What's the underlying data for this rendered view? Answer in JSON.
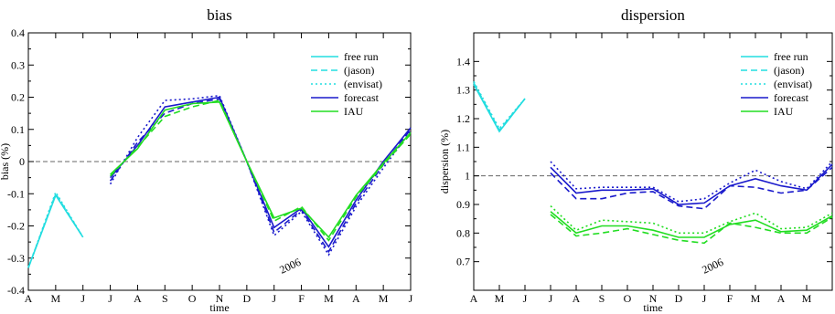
{
  "colors": {
    "cyan": "#22dde0",
    "blue": "#1a1acc",
    "green": "#22dd22",
    "ref": "#666666"
  },
  "chart_data": [
    {
      "type": "line",
      "title": "bias",
      "xlabel": "time",
      "ylabel": "bias (%)",
      "x_ticks": [
        "A",
        "M",
        "J",
        "J",
        "A",
        "S",
        "O",
        "N",
        "D",
        "J",
        "F",
        "M",
        "A",
        "M",
        "J"
      ],
      "ylim": [
        -0.4,
        0.4
      ],
      "y_ticks": [
        "0.4",
        "0.3",
        "0.2",
        "0.1",
        "0",
        "-0.1",
        "-0.2",
        "-0.3",
        "-0.4"
      ],
      "y_tick_values": [
        0.4,
        0.3,
        0.2,
        0.1,
        0,
        -0.1,
        -0.2,
        -0.3,
        -0.4
      ],
      "reference_line": 0,
      "annotation": "2006",
      "legend_position": "top-right",
      "series": [
        {
          "name": "free run",
          "color": "cyan",
          "dash": "solid",
          "points": [
            [
              0,
              -0.33
            ],
            [
              1,
              -0.105
            ],
            [
              2,
              -0.235
            ]
          ]
        },
        {
          "name": "(jason)",
          "color": "cyan",
          "dash": "dashed",
          "points": [
            [
              0,
              -0.33
            ],
            [
              1,
              -0.1
            ],
            [
              2,
              -0.235
            ]
          ]
        },
        {
          "name": "(envisat)",
          "color": "cyan",
          "dash": "dotted",
          "points": [
            [
              0,
              -0.33
            ],
            [
              1,
              -0.095
            ],
            [
              2,
              -0.235
            ]
          ]
        },
        {
          "name": "forecast",
          "color": "blue",
          "dash": "solid",
          "points": [
            [
              3,
              -0.05
            ],
            [
              4,
              0.05
            ],
            [
              5,
              0.17
            ],
            [
              6,
              0.185
            ],
            [
              7,
              0.2
            ],
            [
              8,
              0.0
            ],
            [
              9,
              -0.205
            ],
            [
              10,
              -0.145
            ],
            [
              11,
              -0.265
            ],
            [
              12,
              -0.12
            ],
            [
              13,
              0.0
            ],
            [
              14,
              0.105
            ]
          ]
        },
        {
          "name": "",
          "color": "blue",
          "dash": "dashed",
          "points": [
            [
              3,
              -0.06
            ],
            [
              4,
              0.06
            ],
            [
              5,
              0.15
            ],
            [
              6,
              0.18
            ],
            [
              7,
              0.195
            ],
            [
              8,
              0.0
            ],
            [
              9,
              -0.22
            ],
            [
              10,
              -0.15
            ],
            [
              11,
              -0.28
            ],
            [
              12,
              -0.13
            ],
            [
              13,
              -0.01
            ],
            [
              14,
              0.1
            ]
          ]
        },
        {
          "name": "",
          "color": "blue",
          "dash": "dotted",
          "points": [
            [
              3,
              -0.07
            ],
            [
              4,
              0.075
            ],
            [
              5,
              0.19
            ],
            [
              6,
              0.195
            ],
            [
              7,
              0.205
            ],
            [
              8,
              0.0
            ],
            [
              9,
              -0.23
            ],
            [
              10,
              -0.155
            ],
            [
              11,
              -0.29
            ],
            [
              12,
              -0.14
            ],
            [
              13,
              -0.02
            ],
            [
              14,
              0.095
            ]
          ]
        },
        {
          "name": "IAU",
          "color": "green",
          "dash": "solid",
          "points": [
            [
              3,
              -0.04
            ],
            [
              4,
              0.04
            ],
            [
              5,
              0.16
            ],
            [
              6,
              0.18
            ],
            [
              7,
              0.185
            ],
            [
              8,
              0.0
            ],
            [
              9,
              -0.175
            ],
            [
              10,
              -0.145
            ],
            [
              11,
              -0.235
            ],
            [
              12,
              -0.105
            ],
            [
              13,
              -0.005
            ],
            [
              14,
              0.09
            ]
          ]
        },
        {
          "name": "",
          "color": "green",
          "dash": "dashed",
          "points": [
            [
              3,
              -0.045
            ],
            [
              4,
              0.045
            ],
            [
              5,
              0.14
            ],
            [
              6,
              0.17
            ],
            [
              7,
              0.19
            ],
            [
              8,
              0.0
            ],
            [
              9,
              -0.185
            ],
            [
              10,
              -0.14
            ],
            [
              11,
              -0.245
            ],
            [
              12,
              -0.11
            ],
            [
              13,
              -0.01
            ],
            [
              14,
              0.085
            ]
          ]
        }
      ]
    },
    {
      "type": "line",
      "title": "dispersion",
      "xlabel": "time",
      "ylabel": "dispersion (%)",
      "x_ticks": [
        "A",
        "M",
        "J",
        "J",
        "A",
        "S",
        "O",
        "N",
        "D",
        "J",
        "F",
        "M",
        "A",
        "M",
        ""
      ],
      "ylim": [
        0.6,
        1.5
      ],
      "y_ticks": [
        "1.4",
        "1.3",
        "1.2",
        "1.1",
        "1",
        "0.9",
        "0.8",
        "0.7"
      ],
      "y_tick_values": [
        1.4,
        1.3,
        1.2,
        1.1,
        1.0,
        0.9,
        0.8,
        0.7
      ],
      "reference_line": 1.0,
      "annotation": "2006",
      "legend_position": "top-right",
      "series": [
        {
          "name": "free run",
          "color": "cyan",
          "dash": "solid",
          "points": [
            [
              0,
              1.32
            ],
            [
              1,
              1.155
            ],
            [
              2,
              1.27
            ]
          ]
        },
        {
          "name": "(jason)",
          "color": "cyan",
          "dash": "dashed",
          "points": [
            [
              0,
              1.325
            ],
            [
              1,
              1.16
            ],
            [
              2,
              1.27
            ]
          ]
        },
        {
          "name": "(envisat)",
          "color": "cyan",
          "dash": "dotted",
          "points": [
            [
              0,
              1.33
            ],
            [
              1,
              1.165
            ],
            [
              2,
              1.27
            ]
          ]
        },
        {
          "name": "forecast",
          "color": "blue",
          "dash": "solid",
          "points": [
            [
              3,
              1.03
            ],
            [
              4,
              0.94
            ],
            [
              5,
              0.95
            ],
            [
              6,
              0.95
            ],
            [
              7,
              0.955
            ],
            [
              8,
              0.9
            ],
            [
              9,
              0.905
            ],
            [
              10,
              0.965
            ],
            [
              11,
              0.99
            ],
            [
              12,
              0.965
            ],
            [
              13,
              0.95
            ],
            [
              14,
              1.04
            ]
          ]
        },
        {
          "name": "",
          "color": "blue",
          "dash": "dashed",
          "points": [
            [
              3,
              1.01
            ],
            [
              4,
              0.92
            ],
            [
              5,
              0.92
            ],
            [
              6,
              0.94
            ],
            [
              7,
              0.945
            ],
            [
              8,
              0.895
            ],
            [
              9,
              0.885
            ],
            [
              10,
              0.965
            ],
            [
              11,
              0.96
            ],
            [
              12,
              0.94
            ],
            [
              13,
              0.95
            ],
            [
              14,
              1.03
            ]
          ]
        },
        {
          "name": "",
          "color": "blue",
          "dash": "dotted",
          "points": [
            [
              3,
              1.05
            ],
            [
              4,
              0.955
            ],
            [
              5,
              0.96
            ],
            [
              6,
              0.96
            ],
            [
              7,
              0.96
            ],
            [
              8,
              0.91
            ],
            [
              9,
              0.92
            ],
            [
              10,
              0.975
            ],
            [
              11,
              1.02
            ],
            [
              12,
              0.98
            ],
            [
              13,
              0.955
            ],
            [
              14,
              1.05
            ]
          ]
        },
        {
          "name": "IAU",
          "color": "green",
          "dash": "solid",
          "points": [
            [
              3,
              0.875
            ],
            [
              4,
              0.8
            ],
            [
              5,
              0.825
            ],
            [
              6,
              0.825
            ],
            [
              7,
              0.81
            ],
            [
              8,
              0.785
            ],
            [
              9,
              0.785
            ],
            [
              10,
              0.83
            ],
            [
              11,
              0.845
            ],
            [
              12,
              0.805
            ],
            [
              13,
              0.81
            ],
            [
              14,
              0.86
            ]
          ]
        },
        {
          "name": "",
          "color": "green",
          "dash": "dashed",
          "points": [
            [
              3,
              0.865
            ],
            [
              4,
              0.79
            ],
            [
              5,
              0.8
            ],
            [
              6,
              0.815
            ],
            [
              7,
              0.795
            ],
            [
              8,
              0.775
            ],
            [
              9,
              0.765
            ],
            [
              10,
              0.835
            ],
            [
              11,
              0.82
            ],
            [
              12,
              0.8
            ],
            [
              13,
              0.8
            ],
            [
              14,
              0.855
            ]
          ]
        },
        {
          "name": "",
          "color": "green",
          "dash": "dotted",
          "points": [
            [
              3,
              0.895
            ],
            [
              4,
              0.81
            ],
            [
              5,
              0.845
            ],
            [
              6,
              0.84
            ],
            [
              7,
              0.835
            ],
            [
              8,
              0.8
            ],
            [
              9,
              0.8
            ],
            [
              10,
              0.84
            ],
            [
              11,
              0.87
            ],
            [
              12,
              0.815
            ],
            [
              13,
              0.82
            ],
            [
              14,
              0.87
            ]
          ]
        }
      ]
    }
  ]
}
